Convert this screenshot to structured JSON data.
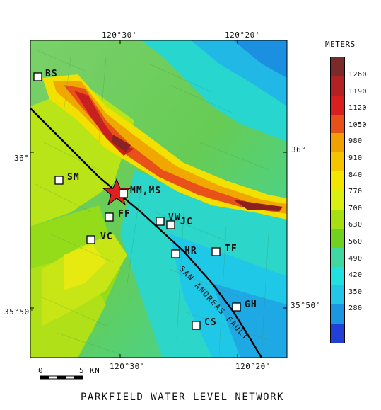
{
  "title": "PARKFIELD WATER LEVEL NETWORK",
  "map": {
    "lon_top": [
      "120°30'",
      "120°20'"
    ],
    "lon_bottom": [
      "120°30'",
      "120°20'"
    ],
    "lat_left": [
      "36°",
      "35°50'"
    ],
    "lat_right": [
      "36°",
      "35°50'"
    ],
    "fault_label": "SAN ANDREAS FAULT",
    "stations": [
      {
        "id": "BS",
        "label": "BS"
      },
      {
        "id": "SM",
        "label": "SM"
      },
      {
        "id": "MM",
        "label": "MM,MS"
      },
      {
        "id": "FF",
        "label": "FF"
      },
      {
        "id": "VW",
        "label": "VW"
      },
      {
        "id": "JC",
        "label": "JC"
      },
      {
        "id": "VC",
        "label": "VC"
      },
      {
        "id": "HR",
        "label": "HR"
      },
      {
        "id": "TF",
        "label": "TF"
      },
      {
        "id": "GH",
        "label": "GH"
      },
      {
        "id": "CS",
        "label": "CS"
      }
    ],
    "epicenter_icon": "star-icon",
    "scale_bar": {
      "zero": "0",
      "five": "5",
      "unit": "KN"
    }
  },
  "colorbar": {
    "title": "METERS",
    "ticks": [
      "1260",
      "1190",
      "1120",
      "1050",
      "980",
      "910",
      "840",
      "770",
      "700",
      "630",
      "560",
      "490",
      "420",
      "350",
      "280"
    ],
    "colors": [
      "#7a2a2a",
      "#b22222",
      "#d81e1e",
      "#e8501a",
      "#f0a000",
      "#f4c400",
      "#f2e600",
      "#d8ef10",
      "#a6e012",
      "#70d21e",
      "#3ed8a0",
      "#20e0e0",
      "#22c6e6",
      "#1b96e2",
      "#2040d8"
    ]
  }
}
